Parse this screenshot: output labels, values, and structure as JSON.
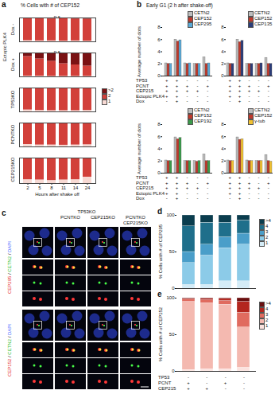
{
  "chart_data": [
    {
      "panel": "a",
      "type": "bar",
      "stacked": true,
      "title": "% Cells with # of CEP152",
      "x_label": "Hours after shake off",
      "categories": [
        "2",
        "5",
        "8",
        "11",
        "14",
        "24"
      ],
      "ylim": [
        0,
        100
      ],
      "tick_labels": "x",
      "legend": "right",
      "series": [
        {
          "name": ">2",
          "color": "#7a1214"
        },
        {
          "name": "2",
          "color": "#d2403a"
        },
        {
          "name": "1",
          "color": "#f7d9d3"
        }
      ],
      "rows": [
        {
          "group": "Ectopic PLK4",
          "label": "Dox -",
          "annotation": "n.s.",
          "values": {
            ">2": [
              3,
              3,
              4,
              3,
              4,
              5
            ],
            "2": [
              92,
              93,
              92,
              94,
              92,
              92
            ],
            "1": [
              5,
              4,
              4,
              3,
              4,
              3
            ]
          }
        },
        {
          "group": "Ectopic PLK4",
          "label": "Dox +",
          "annotation": "n.s.",
          "values": {
            ">2": [
              15,
              25,
              35,
              45,
              50,
              55
            ],
            "2": [
              82,
              72,
              63,
              53,
              48,
              43
            ],
            "1": [
              3,
              3,
              2,
              2,
              2,
              2
            ]
          }
        },
        {
          "label": "TP53KO",
          "values": {
            ">2": [
              2,
              2,
              2,
              2,
              2,
              3
            ],
            "2": [
              90,
              92,
              93,
              93,
              93,
              91
            ],
            "1": [
              8,
              6,
              5,
              5,
              5,
              6
            ]
          }
        },
        {
          "label": "PCNTKO",
          "values": {
            ">2": [
              2,
              2,
              2,
              2,
              2,
              2
            ],
            "2": [
              88,
              90,
              90,
              91,
              90,
              89
            ],
            "1": [
              10,
              8,
              8,
              7,
              8,
              9
            ]
          }
        },
        {
          "label": "CEP215KO",
          "values": {
            ">2": [
              2,
              2,
              2,
              2,
              2,
              2
            ],
            "2": [
              83,
              84,
              86,
              84,
              83,
              73
            ],
            "1": [
              15,
              14,
              12,
              14,
              15,
              25
            ]
          }
        }
      ]
    },
    {
      "panel": "b",
      "type": "bar",
      "title": "Early G1 (2 h after shake-off)",
      "y_label": "Average number of dots",
      "categories": [
        null,
        null,
        null,
        null,
        null
      ],
      "ylim": [
        0,
        8
      ],
      "yticks": [
        0,
        2,
        4,
        6,
        8
      ],
      "conditions": [
        {
          "label": "TP53",
          "values": [
            "+",
            "+",
            "-",
            "-",
            "-"
          ]
        },
        {
          "label": "PCNT",
          "values": [
            "+",
            "+",
            "+",
            "-",
            "+"
          ]
        },
        {
          "label": "CEP215",
          "values": [
            "+",
            "+",
            "+",
            "+",
            "-"
          ]
        },
        {
          "label": "Ectopic PLK4",
          "values": [
            "+",
            "+",
            "-",
            "-",
            "-"
          ]
        },
        {
          "label": "Dox",
          "values": [
            "-",
            "+",
            "-",
            "-",
            "-"
          ]
        }
      ],
      "charts": [
        {
          "series": [
            {
              "name": "CETN2",
              "color": "#bdbdbd",
              "values": [
                2.1,
                6.0,
                2.1,
                2.0,
                3.1
              ]
            },
            {
              "name": "CEP152",
              "color": "#c0392b",
              "values": [
                2.0,
                5.7,
                2.0,
                2.0,
                2.0
              ]
            },
            {
              "name": "CEP295",
              "color": "#5aa9d6",
              "values": [
                2.0,
                5.9,
                2.1,
                2.0,
                2.1
              ]
            }
          ]
        },
        {
          "series": [
            {
              "name": "CETN2",
              "color": "#bdbdbd",
              "values": [
                2.1,
                6.0,
                2.0,
                2.0,
                3.0
              ]
            },
            {
              "name": "CEP152",
              "color": "#c0392b",
              "values": [
                2.0,
                5.6,
                2.0,
                2.0,
                2.0
              ]
            },
            {
              "name": "CEP135",
              "color": "#2c3e7a",
              "values": [
                2.0,
                5.8,
                2.0,
                2.1,
                2.0
              ]
            }
          ]
        },
        {
          "series": [
            {
              "name": "CETN2",
              "color": "#bdbdbd",
              "values": [
                2.1,
                5.9,
                2.0,
                2.0,
                3.1
              ]
            },
            {
              "name": "CEP152",
              "color": "#c0392b",
              "values": [
                2.0,
                5.6,
                2.0,
                1.9,
                2.0
              ]
            },
            {
              "name": "CEP192",
              "color": "#3a9a4a",
              "values": [
                2.0,
                5.8,
                2.0,
                2.0,
                2.0
              ]
            }
          ]
        },
        {
          "series": [
            {
              "name": "CETN2",
              "color": "#bdbdbd",
              "values": [
                2.1,
                5.9,
                2.1,
                2.0,
                3.0
              ]
            },
            {
              "name": "CEP152",
              "color": "#c0392b",
              "values": [
                2.0,
                5.5,
                2.0,
                2.0,
                2.0
              ]
            },
            {
              "name": "γ-tub",
              "color": "#f1c232",
              "values": [
                2.0,
                5.6,
                2.0,
                2.0,
                1.9
              ]
            }
          ]
        }
      ]
    },
    {
      "panel": "d",
      "type": "bar",
      "stacked": true,
      "y_label": "% Cells with # of CEP295",
      "categories": [
        null,
        null,
        null,
        null
      ],
      "ylim": [
        0,
        100
      ],
      "yticks": [
        0,
        50,
        100
      ],
      "legend": "right",
      "series": [
        {
          "name": ">4",
          "color": "#0b3d4e",
          "values": [
            15,
            10,
            10,
            7
          ]
        },
        {
          "name": "4",
          "color": "#1f6f8b",
          "values": [
            35,
            30,
            20,
            18
          ]
        },
        {
          "name": "3",
          "color": "#4a9ec9",
          "values": [
            15,
            15,
            15,
            15
          ]
        },
        {
          "name": "2",
          "color": "#8ccbe8",
          "values": [
            30,
            40,
            45,
            50
          ]
        },
        {
          "name": "1",
          "color": "#d4ecf7",
          "values": [
            5,
            5,
            10,
            10
          ]
        }
      ]
    },
    {
      "panel": "e",
      "type": "bar",
      "stacked": true,
      "y_label": "% Cells with # of CEP152",
      "categories": [
        null,
        null,
        null,
        null
      ],
      "ylim": [
        0,
        100
      ],
      "yticks": [
        0,
        50,
        100
      ],
      "legend": "right",
      "series": [
        {
          "name": ">4",
          "color": "#6b0f0f",
          "values": [
            1,
            1,
            1,
            5
          ]
        },
        {
          "name": "4",
          "color": "#b3261e",
          "values": [
            1,
            2,
            3,
            15
          ]
        },
        {
          "name": "3",
          "color": "#e06b5f",
          "values": [
            3,
            4,
            5,
            20
          ]
        },
        {
          "name": "2",
          "color": "#f4b9b0",
          "values": [
            93,
            90,
            88,
            55
          ]
        },
        {
          "name": "1",
          "color": "#fbe3df",
          "values": [
            2,
            3,
            3,
            5
          ]
        }
      ],
      "conditions": [
        {
          "label": "TP53",
          "values": [
            "-",
            "-",
            "-",
            "-"
          ]
        },
        {
          "label": "PCNT",
          "values": [
            "+",
            "-",
            "+",
            "-"
          ]
        },
        {
          "label": "CEP215",
          "values": [
            "+",
            "+",
            "-",
            "-"
          ]
        }
      ]
    }
  ],
  "panel_c": {
    "panel": "c",
    "header": "TP53KO",
    "columns": [
      null,
      "PCNTKO",
      "CEP215KO",
      "PCNTKO CEP215KO"
    ],
    "rows": [
      "CEP295 / CETN2 / DAPI",
      "CEP152 / CETN2 / DAPI"
    ]
  }
}
